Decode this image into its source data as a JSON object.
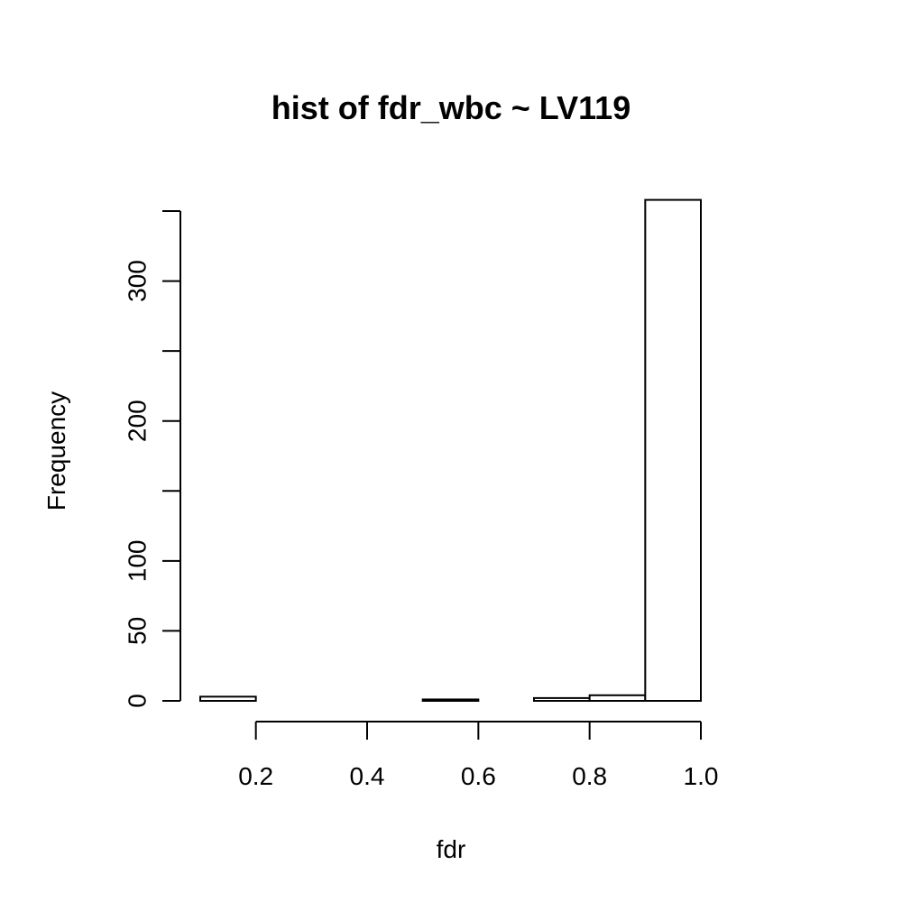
{
  "chart_data": {
    "type": "bar",
    "title": "hist of fdr_wbc ~ LV119",
    "xlabel": "fdr",
    "ylabel": "Frequency",
    "bins": [
      {
        "start": 0.1,
        "end": 0.2,
        "count": 3
      },
      {
        "start": 0.2,
        "end": 0.3,
        "count": 0
      },
      {
        "start": 0.3,
        "end": 0.4,
        "count": 0
      },
      {
        "start": 0.4,
        "end": 0.5,
        "count": 0
      },
      {
        "start": 0.5,
        "end": 0.6,
        "count": 1
      },
      {
        "start": 0.6,
        "end": 0.7,
        "count": 0
      },
      {
        "start": 0.7,
        "end": 0.8,
        "count": 2
      },
      {
        "start": 0.8,
        "end": 0.9,
        "count": 4
      },
      {
        "start": 0.9,
        "end": 1.0,
        "count": 358
      }
    ],
    "xlim": [
      0.1,
      1.0
    ],
    "ylim": [
      0,
      350
    ],
    "x_ticks": [
      0.2,
      0.4,
      0.6,
      0.8,
      1.0
    ],
    "x_tick_labels": [
      "0.2",
      "0.4",
      "0.6",
      "0.8",
      "1.0"
    ],
    "y_ticks": [
      0,
      50,
      100,
      150,
      200,
      250,
      300,
      350
    ],
    "y_tick_labels": [
      "0",
      "50",
      "100",
      "",
      "200",
      "",
      "300",
      ""
    ],
    "grid": false,
    "legend": "none"
  }
}
